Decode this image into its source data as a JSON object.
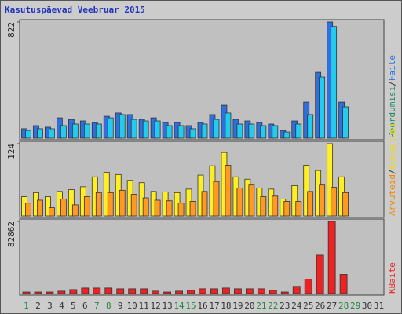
{
  "chart_data": [
    {
      "type": "bar",
      "title": "Kasutuspäevad Veebruar 2015",
      "separator": "/",
      "categories": [
        "1",
        "2",
        "3",
        "4",
        "5",
        "6",
        "7",
        "8",
        "9",
        "10",
        "11",
        "12",
        "13",
        "14",
        "15",
        "16",
        "17",
        "18",
        "19",
        "20",
        "21",
        "22",
        "23",
        "24",
        "25",
        "26",
        "27",
        "28",
        "29",
        "30",
        "31"
      ],
      "category_colors": [
        "#228844",
        "#333333",
        "#333333",
        "#333333",
        "#333333",
        "#333333",
        "#228844",
        "#228844",
        "#333333",
        "#333333",
        "#333333",
        "#333333",
        "#333333",
        "#228844",
        "#228844",
        "#333333",
        "#333333",
        "#333333",
        "#333333",
        "#333333",
        "#228844",
        "#228844",
        "#333333",
        "#333333",
        "#333333",
        "#333333",
        "#333333",
        "#228844",
        "#228844",
        "#333333",
        "#333333"
      ],
      "ylim": [
        0,
        822
      ],
      "yticks": [
        822
      ],
      "series": [
        {
          "name": "Faile",
          "color": "#2f6fe0",
          "label_color": "#2f6fe0",
          "values": [
            67,
            89,
            78,
            144,
            133,
            122,
            111,
            155,
            178,
            167,
            133,
            144,
            111,
            111,
            89,
            111,
            167,
            233,
            133,
            122,
            111,
            100,
            55,
            122,
            255,
            466,
            822,
            255,
            null,
            null,
            null
          ]
        },
        {
          "name": "Pöördumisi",
          "color": "#22ccee",
          "label_color": "#228866",
          "values": [
            55,
            67,
            67,
            89,
            100,
            100,
            100,
            144,
            167,
            133,
            122,
            122,
            89,
            89,
            67,
            100,
            133,
            178,
            100,
            100,
            89,
            89,
            44,
            100,
            167,
            433,
            790,
            222,
            null,
            null,
            null
          ]
        }
      ]
    },
    {
      "type": "bar",
      "ylim": [
        0,
        124
      ],
      "yticks": [
        124
      ],
      "series": [
        {
          "name": "Külastusi",
          "color": "#ffee22",
          "label_color": "#eedd00",
          "values": [
            33,
            40,
            33,
            42,
            45,
            50,
            67,
            75,
            71,
            61,
            57,
            42,
            41,
            40,
            46,
            70,
            86,
            109,
            67,
            63,
            48,
            46,
            29,
            52,
            87,
            78,
            124,
            67,
            null,
            null,
            null
          ]
        },
        {
          "name": "Arvuteid",
          "color": "#ff9922",
          "label_color": "#ee8800",
          "values": [
            22,
            27,
            14,
            29,
            19,
            33,
            40,
            40,
            44,
            37,
            31,
            27,
            26,
            22,
            25,
            42,
            59,
            87,
            48,
            53,
            33,
            34,
            25,
            25,
            42,
            53,
            49,
            40,
            null,
            null,
            null
          ]
        }
      ]
    },
    {
      "type": "bar",
      "ylim": [
        0,
        82862
      ],
      "yticks": [
        82862
      ],
      "series": [
        {
          "name": "KBaite",
          "color": "#ee2222",
          "label_color": "#ee2222",
          "values": [
            1800,
            1800,
            1800,
            2800,
            4600,
            6400,
            6400,
            6400,
            5500,
            5500,
            5500,
            2800,
            1800,
            2800,
            3700,
            5500,
            5500,
            6400,
            5500,
            5500,
            5500,
            3700,
            1800,
            8300,
            16600,
            44200,
            82862,
            22100,
            null,
            null,
            null
          ]
        }
      ]
    }
  ]
}
